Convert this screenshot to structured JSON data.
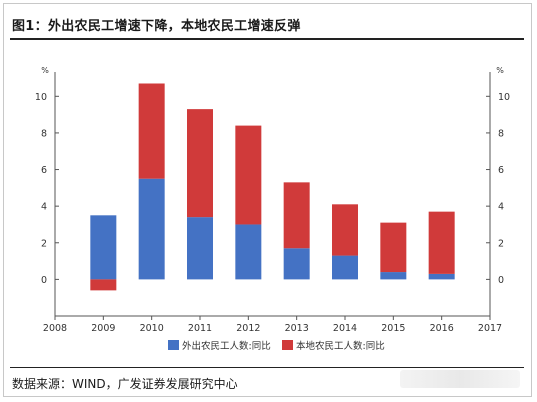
{
  "header": {
    "title": "图1：外出农民工增速下降，本地农民工增速反弹"
  },
  "footer": {
    "source": "数据来源：WIND，广发证券发展研究中心"
  },
  "chart_data": {
    "type": "bar",
    "stacked": true,
    "title": "",
    "xlabel": "",
    "ylabel": "%",
    "y_unit_label": "%",
    "x_ticks": [
      "2008",
      "2009",
      "2010",
      "2011",
      "2012",
      "2013",
      "2014",
      "2015",
      "2016",
      "2017"
    ],
    "categories": [
      "2009",
      "2010",
      "2011",
      "2012",
      "2013",
      "2014",
      "2015",
      "2016"
    ],
    "series": [
      {
        "name": "外出农民工人数:同比",
        "color": "#4472c4",
        "values": [
          3.5,
          5.5,
          3.4,
          3.0,
          1.7,
          1.3,
          0.4,
          0.3
        ]
      },
      {
        "name": "本地农民工人数:同比",
        "color": "#d03a3a",
        "values": [
          -0.6,
          5.2,
          5.9,
          5.4,
          3.6,
          2.8,
          2.7,
          3.4
        ]
      }
    ],
    "ylim": [
      -2,
      11
    ],
    "y_ticks": [
      0,
      2,
      4,
      6,
      8,
      10
    ],
    "dual_axis": true,
    "grid": false,
    "legend_position": "bottom"
  },
  "colors": {
    "outflow": "#4472c4",
    "local": "#d03a3a"
  }
}
